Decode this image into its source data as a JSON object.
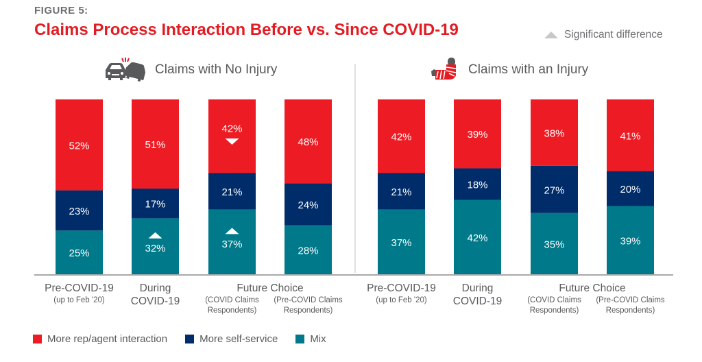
{
  "figure_label": "FIGURE 5:",
  "title": "Claims Process Interaction Before vs. Since COVID-19",
  "significance_legend": "Significant difference",
  "panels": [
    {
      "title": "Claims with No Injury",
      "icon": "car-crash-icon"
    },
    {
      "title": "Claims with an Injury",
      "icon": "arm-cast-icon"
    }
  ],
  "colors": {
    "rep": "#ed1c24",
    "self": "#002d6a",
    "mix": "#007a8a",
    "axis": "#8c8c8c",
    "divider": "#e1e1e1",
    "sig": "#c8c8c8"
  },
  "legend": [
    {
      "label": "More rep/agent interaction",
      "color": "#ed1c24"
    },
    {
      "label": "More self-service",
      "color": "#002d6a"
    },
    {
      "label": "Mix",
      "color": "#007a8a"
    }
  ],
  "chart_data": {
    "type": "bar",
    "stacked": true,
    "title": "Claims Process Interaction Before vs. Since COVID-19",
    "ylim": [
      0,
      100
    ],
    "legend_position": "bottom-left",
    "series_names": [
      "Mix",
      "More self-service",
      "More rep/agent interaction"
    ],
    "groups": [
      {
        "panel": "Claims with No Injury",
        "bars": [
          {
            "label": "Pre-COVID-19",
            "sublabel": "(up to Feb '20)",
            "mix": 25,
            "self": 23,
            "rep": 52,
            "sig": {}
          },
          {
            "label": "During COVID-19",
            "sublabel": "",
            "mix": 32,
            "self": 17,
            "rep": 51,
            "sig": {
              "mix": "up"
            }
          },
          {
            "label": "Future Choice",
            "sublabel": "(COVID Claims Respondents)",
            "mix": 37,
            "self": 21,
            "rep": 42,
            "sig": {
              "mix": "up",
              "rep": "down"
            }
          },
          {
            "label": "Future Choice",
            "sublabel": "(Pre-COVID Claims Respondents)",
            "mix": 28,
            "self": 24,
            "rep": 48,
            "sig": {}
          }
        ]
      },
      {
        "panel": "Claims with an Injury",
        "bars": [
          {
            "label": "Pre-COVID-19",
            "sublabel": "(up to Feb '20)",
            "mix": 37,
            "self": 21,
            "rep": 42,
            "sig": {}
          },
          {
            "label": "During COVID-19",
            "sublabel": "",
            "mix": 42,
            "self": 18,
            "rep": 39,
            "sig": {}
          },
          {
            "label": "Future Choice",
            "sublabel": "(COVID Claims Respondents)",
            "mix": 35,
            "self": 27,
            "rep": 38,
            "sig": {}
          },
          {
            "label": "Future Choice",
            "sublabel": "(Pre-COVID Claims Respondents)",
            "mix": 39,
            "self": 20,
            "rep": 41,
            "sig": {}
          }
        ]
      }
    ],
    "xtick_labels": [
      {
        "lines": [
          "Pre-COVID-19"
        ],
        "sub": [
          "(up to Feb '20)"
        ]
      },
      {
        "lines": [
          "During",
          "COVID-19"
        ],
        "sub": []
      },
      {
        "lines": [
          "Future Choice"
        ],
        "sub": []
      },
      {
        "lines": [],
        "sub": [
          "(COVID Claims",
          "Respondents)"
        ]
      },
      {
        "lines": [],
        "sub": [
          "(Pre-COVID Claims",
          "Respondents)"
        ]
      }
    ]
  }
}
